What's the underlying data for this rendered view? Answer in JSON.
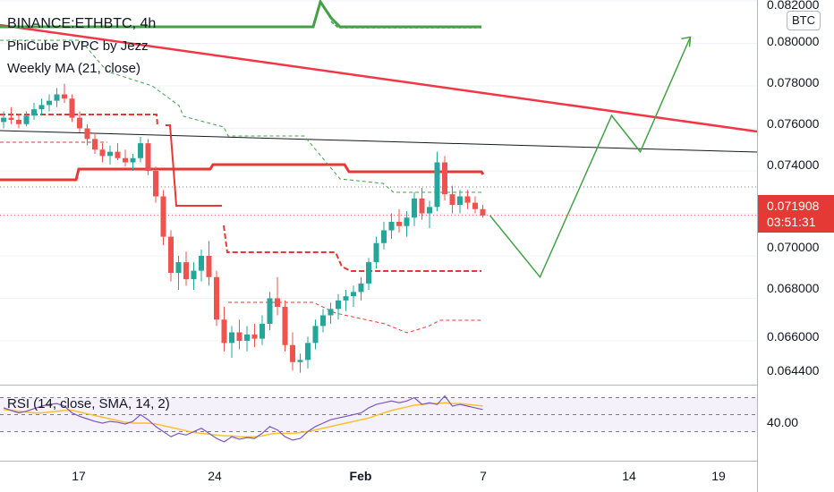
{
  "legend": {
    "symbol": "BINANCE:ETHBTC, 4h",
    "indicator1": "PhiCube PVPC by Jezz",
    "indicator2": "Weekly MA (21, close)"
  },
  "rsi_legend": "RSI (14, close, SMA, 14, 2)",
  "price_axis": {
    "currency_badge": "BTC",
    "ticks": [
      "0.082000",
      "0.080000",
      "0.078000",
      "0.076000",
      "0.074000",
      "0.070000",
      "0.068000",
      "0.066000",
      "0.064400"
    ],
    "last_price": "0.071908",
    "countdown": "03:51:31"
  },
  "rsi_axis": {
    "tick": "40.00"
  },
  "time_axis": {
    "ticks": [
      "17",
      "24",
      "Feb",
      "7",
      "14",
      "19"
    ]
  },
  "colors": {
    "up": "#26a69a",
    "down": "#ef5350",
    "trendline": "#f23645",
    "projection": "#43a047",
    "rsi": "#7e57c2",
    "rsi_ma": "#fbc02d"
  },
  "chart_data": {
    "type": "candlestick",
    "ylim": [
      0.0644,
      0.082
    ],
    "last_price": 0.071908,
    "candles": [
      [
        0.0763,
        0.0768,
        0.076,
        0.0765
      ],
      [
        0.0765,
        0.077,
        0.0762,
        0.0764
      ],
      [
        0.0764,
        0.0767,
        0.076,
        0.0762
      ],
      [
        0.0762,
        0.0768,
        0.0761,
        0.0766
      ],
      [
        0.0766,
        0.0772,
        0.0764,
        0.0769
      ],
      [
        0.0769,
        0.0774,
        0.0766,
        0.0771
      ],
      [
        0.0771,
        0.0776,
        0.0768,
        0.0773
      ],
      [
        0.0773,
        0.0779,
        0.077,
        0.0776
      ],
      [
        0.0776,
        0.0781,
        0.0772,
        0.0774
      ],
      [
        0.0774,
        0.0776,
        0.0763,
        0.0765
      ],
      [
        0.0765,
        0.0768,
        0.0758,
        0.076
      ],
      [
        0.076,
        0.0762,
        0.0752,
        0.0755
      ],
      [
        0.0755,
        0.0758,
        0.0748,
        0.075
      ],
      [
        0.075,
        0.0753,
        0.0744,
        0.0747
      ],
      [
        0.0747,
        0.0752,
        0.0743,
        0.0749
      ],
      [
        0.0749,
        0.0753,
        0.0745,
        0.0746
      ],
      [
        0.0746,
        0.075,
        0.0742,
        0.0744
      ],
      [
        0.0744,
        0.0748,
        0.074,
        0.0746
      ],
      [
        0.0746,
        0.0756,
        0.0744,
        0.0753
      ],
      [
        0.0753,
        0.0755,
        0.0738,
        0.074
      ],
      [
        0.074,
        0.0742,
        0.0725,
        0.0728
      ],
      [
        0.0728,
        0.0731,
        0.0705,
        0.0709
      ],
      [
        0.0709,
        0.0712,
        0.0688,
        0.0692
      ],
      [
        0.0692,
        0.07,
        0.0684,
        0.0697
      ],
      [
        0.0697,
        0.0702,
        0.0686,
        0.0689
      ],
      [
        0.0689,
        0.0697,
        0.0684,
        0.0693
      ],
      [
        0.0693,
        0.0703,
        0.0688,
        0.07
      ],
      [
        0.07,
        0.0707,
        0.0686,
        0.069
      ],
      [
        0.069,
        0.0693,
        0.0667,
        0.067
      ],
      [
        0.067,
        0.0676,
        0.0655,
        0.0659
      ],
      [
        0.0659,
        0.0667,
        0.0652,
        0.0664
      ],
      [
        0.0664,
        0.067,
        0.0656,
        0.066
      ],
      [
        0.066,
        0.0667,
        0.0655,
        0.0663
      ],
      [
        0.0663,
        0.0668,
        0.0657,
        0.0661
      ],
      [
        0.0661,
        0.0672,
        0.0658,
        0.0668
      ],
      [
        0.0668,
        0.0683,
        0.0665,
        0.068
      ],
      [
        0.068,
        0.069,
        0.0672,
        0.0676
      ],
      [
        0.0676,
        0.0679,
        0.0655,
        0.0658
      ],
      [
        0.0658,
        0.0664,
        0.0646,
        0.065
      ],
      [
        0.065,
        0.0654,
        0.0645,
        0.0651
      ],
      [
        0.0651,
        0.0662,
        0.0647,
        0.0659
      ],
      [
        0.0659,
        0.067,
        0.0656,
        0.0667
      ],
      [
        0.0667,
        0.0675,
        0.0664,
        0.0672
      ],
      [
        0.0672,
        0.0678,
        0.0668,
        0.0675
      ],
      [
        0.0675,
        0.0682,
        0.067,
        0.0679
      ],
      [
        0.0679,
        0.0684,
        0.0674,
        0.0681
      ],
      [
        0.0681,
        0.0686,
        0.0676,
        0.0683
      ],
      [
        0.0683,
        0.069,
        0.0679,
        0.0687
      ],
      [
        0.0687,
        0.0699,
        0.0684,
        0.0697
      ],
      [
        0.0697,
        0.0709,
        0.0694,
        0.0706
      ],
      [
        0.0706,
        0.0716,
        0.0703,
        0.0712
      ],
      [
        0.0712,
        0.072,
        0.0708,
        0.0716
      ],
      [
        0.0716,
        0.0722,
        0.0711,
        0.0714
      ],
      [
        0.0714,
        0.0721,
        0.0709,
        0.0718
      ],
      [
        0.0718,
        0.073,
        0.0714,
        0.0727
      ],
      [
        0.0727,
        0.0732,
        0.0717,
        0.072
      ],
      [
        0.072,
        0.0726,
        0.0713,
        0.0723
      ],
      [
        0.0723,
        0.0749,
        0.0721,
        0.0744
      ],
      [
        0.0744,
        0.0747,
        0.0726,
        0.0729
      ],
      [
        0.0729,
        0.0733,
        0.072,
        0.0724
      ],
      [
        0.0724,
        0.0731,
        0.072,
        0.0728
      ],
      [
        0.0728,
        0.0731,
        0.0722,
        0.0725
      ],
      [
        0.0725,
        0.0728,
        0.072,
        0.0722
      ],
      [
        0.0722,
        0.0724,
        0.0718,
        0.0719
      ]
    ],
    "projection": [
      [
        0.0719,
        0
      ],
      [
        0.069,
        14
      ],
      [
        0.0766,
        34
      ],
      [
        0.0749,
        42
      ],
      [
        0.0803,
        56
      ]
    ],
    "rsi": {
      "values": [
        58,
        55,
        52,
        54,
        57,
        60,
        62,
        63,
        60,
        52,
        48,
        45,
        42,
        40,
        42,
        41,
        39,
        42,
        50,
        44,
        36,
        30,
        24,
        28,
        26,
        30,
        34,
        28,
        22,
        18,
        24,
        21,
        23,
        22,
        28,
        36,
        32,
        24,
        20,
        22,
        30,
        36,
        40,
        44,
        46,
        48,
        50,
        52,
        58,
        62,
        64,
        66,
        64,
        66,
        70,
        62,
        64,
        62,
        72,
        60,
        62,
        60,
        58,
        56
      ],
      "ma": [
        56,
        55,
        54,
        53,
        52,
        52,
        53,
        54,
        55,
        55,
        53,
        51,
        49,
        47,
        45,
        43,
        41,
        40,
        40,
        40,
        39,
        37,
        35,
        33,
        31,
        29,
        28,
        27,
        26,
        25,
        25,
        24,
        24,
        24,
        25,
        27,
        28,
        28,
        28,
        29,
        30,
        32,
        34,
        36,
        38,
        40,
        42,
        44,
        46,
        49,
        52,
        55,
        57,
        59,
        61,
        62,
        63,
        63,
        64,
        63,
        63,
        62,
        61,
        60
      ]
    }
  }
}
